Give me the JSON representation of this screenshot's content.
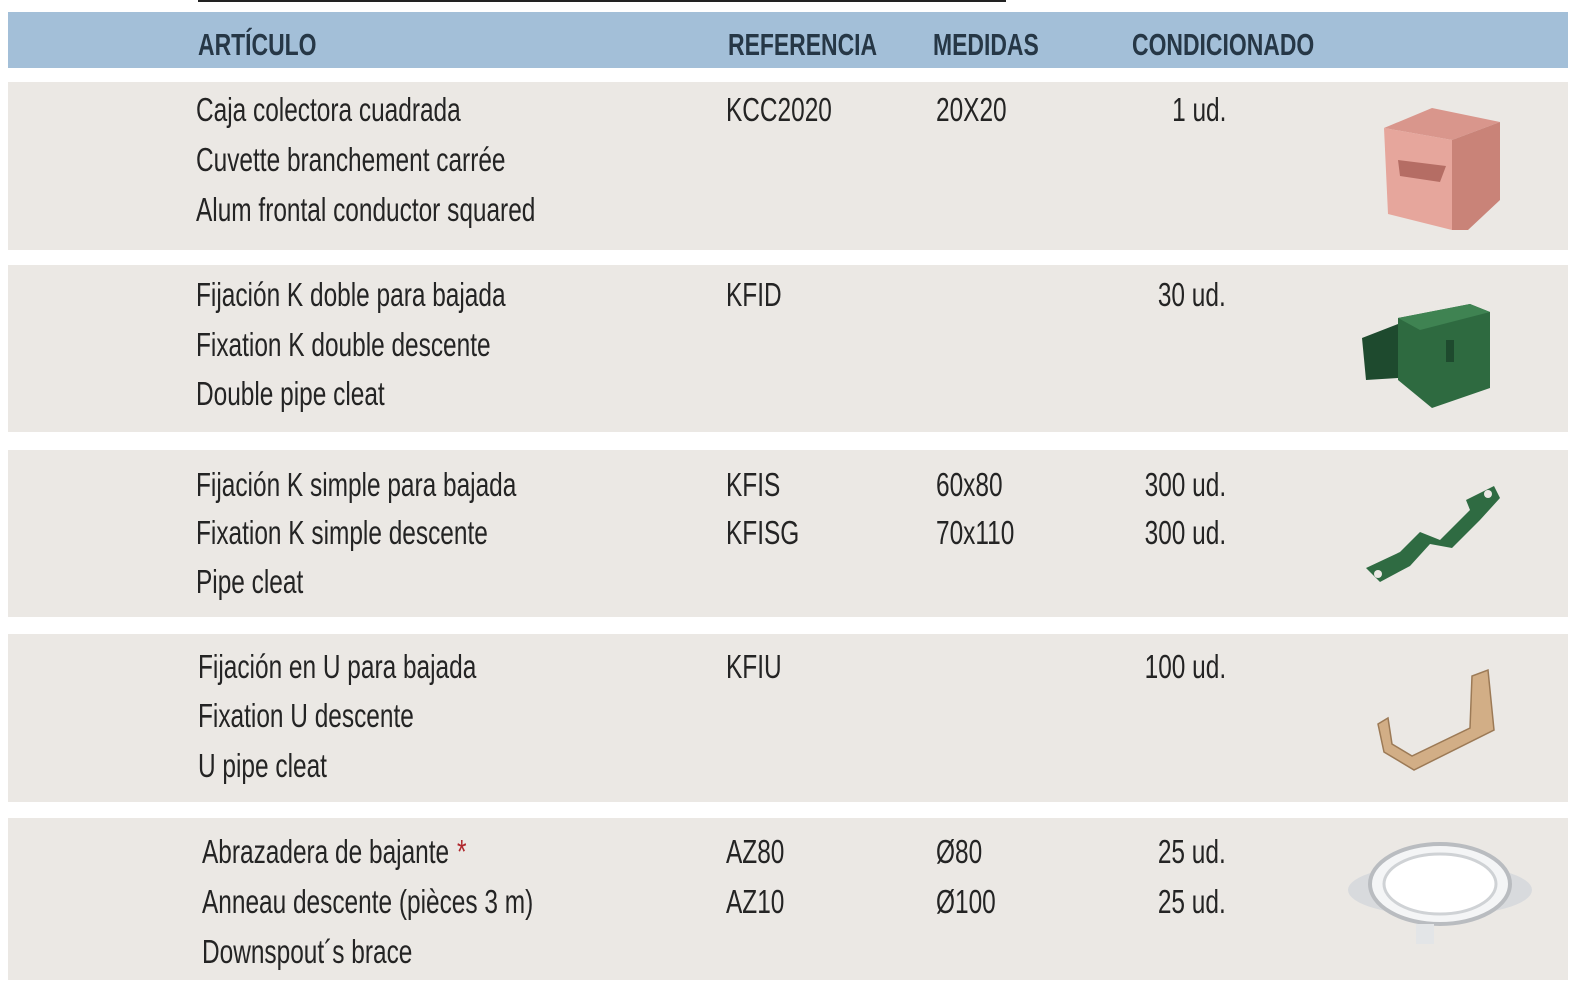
{
  "header": {
    "columns": [
      "ARTÍCULO",
      "REFERENCIA",
      "MEDIDAS",
      "CONDICIONADO"
    ]
  },
  "table": {
    "rows": [
      {
        "article": [
          "Caja colectora cuadrada",
          "Cuvette branchement carrée",
          "Alum frontal conductor squared"
        ],
        "references": [
          "KCC2020"
        ],
        "measures": [
          "20X20"
        ],
        "packaging": [
          "1 ud."
        ]
      },
      {
        "article": [
          "Fijación K doble para bajada",
          "Fixation K double descente",
          "Double pipe cleat"
        ],
        "references": [
          "KFID"
        ],
        "measures": [],
        "packaging": [
          "30 ud."
        ]
      },
      {
        "article": [
          "Fijación K simple para bajada",
          "Fixation K simple descente",
          "Pipe cleat"
        ],
        "references": [
          "KFIS",
          "KFISG"
        ],
        "measures": [
          "60x80",
          "70x110"
        ],
        "packaging": [
          "300 ud.",
          "300 ud."
        ]
      },
      {
        "article": [
          "Fijación en U para bajada",
          "Fixation U descente",
          "U pipe cleat"
        ],
        "references": [
          "KFIU"
        ],
        "measures": [],
        "packaging": [
          "100 ud."
        ]
      },
      {
        "article": [
          "Abrazadera de bajante",
          "Anneau descente (pièces 3 m)",
          "Downspout´s brace"
        ],
        "note": "*",
        "references": [
          "AZ80",
          "AZ10"
        ],
        "measures": [
          "Ø80",
          "Ø100"
        ],
        "packaging": [
          "25 ud.",
          "25 ud."
        ]
      }
    ]
  }
}
